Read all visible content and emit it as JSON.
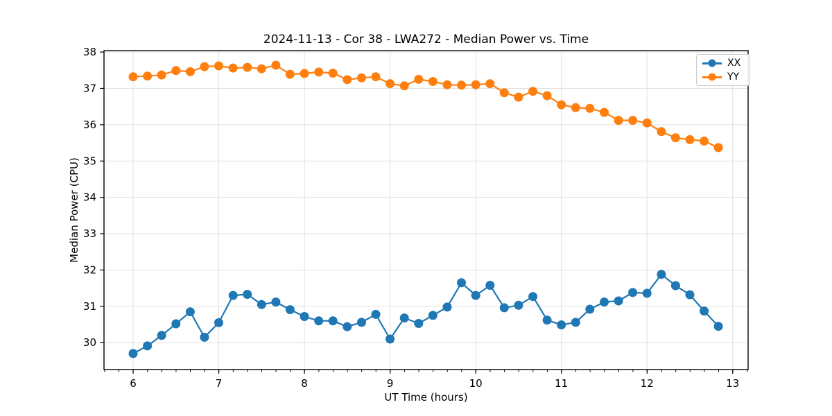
{
  "chart_data": {
    "type": "line",
    "title": "2024-11-13 - Cor 38 - LWA272 - Median Power vs. Time",
    "xlabel": "UT Time (hours)",
    "ylabel": "Median Power (CPU)",
    "x": [
      6,
      6.167,
      6.333,
      6.5,
      6.667,
      6.833,
      7,
      7.167,
      7.333,
      7.5,
      7.667,
      7.833,
      8,
      8.167,
      8.333,
      8.5,
      8.667,
      8.833,
      9,
      9.167,
      9.333,
      9.5,
      9.667,
      9.833,
      10,
      10.167,
      10.333,
      10.5,
      10.667,
      10.833,
      11,
      11.167,
      11.333,
      11.5,
      11.667,
      11.833,
      12,
      12.167,
      12.333,
      12.5,
      12.667,
      12.833
    ],
    "series": [
      {
        "name": "XX",
        "color": "#1f77b4",
        "values": [
          29.7,
          29.91,
          30.2,
          30.52,
          30.85,
          30.15,
          30.55,
          31.3,
          31.33,
          31.05,
          31.12,
          30.91,
          30.72,
          30.6,
          30.6,
          30.44,
          30.56,
          30.78,
          30.1,
          30.68,
          30.53,
          30.75,
          30.98,
          31.65,
          31.3,
          31.58,
          30.96,
          31.03,
          31.27,
          30.62,
          30.49,
          30.56,
          30.92,
          31.12,
          31.15,
          31.38,
          31.36,
          31.88,
          31.57,
          31.32,
          30.87,
          30.45
        ]
      },
      {
        "name": "YY",
        "color": "#ff7f0e",
        "values": [
          37.32,
          37.34,
          37.37,
          37.49,
          37.46,
          37.6,
          37.62,
          37.56,
          37.58,
          37.54,
          37.64,
          37.39,
          37.41,
          37.45,
          37.42,
          37.24,
          37.29,
          37.32,
          37.13,
          37.07,
          37.25,
          37.19,
          37.1,
          37.09,
          37.1,
          37.13,
          36.88,
          36.76,
          36.92,
          36.8,
          36.55,
          36.47,
          36.45,
          36.34,
          36.12,
          36.12,
          36.05,
          35.81,
          35.64,
          35.59,
          35.55,
          35.37
        ]
      }
    ],
    "xlim": [
      5.66,
      13.18
    ],
    "ylim": [
      29.26,
      38.04
    ],
    "xticks": [
      6,
      7,
      8,
      9,
      10,
      11,
      12,
      13
    ],
    "yticks": [
      30,
      31,
      32,
      33,
      34,
      35,
      36,
      37,
      38
    ],
    "x_minor_tick_step": 0.1667,
    "grid": true,
    "grid_color": "#e0e0e0",
    "spine_color": "#000000",
    "legend_position": "upper right",
    "marker": "o"
  }
}
